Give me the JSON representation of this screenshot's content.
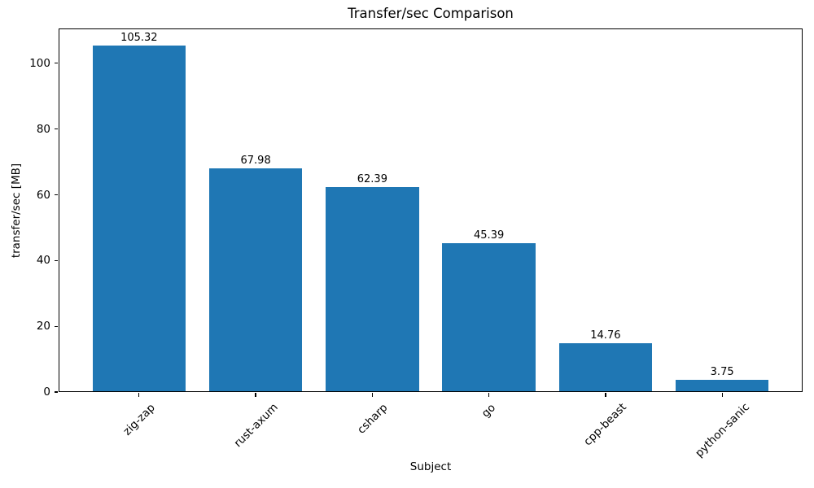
{
  "chart_data": {
    "type": "bar",
    "title": "Transfer/sec Comparison",
    "xlabel": "Subject",
    "ylabel": "transfer/sec [MB]",
    "categories": [
      "zig-zap",
      "rust-axum",
      "csharp",
      "go",
      "cpp-beast",
      "python-sanic"
    ],
    "values": [
      105.32,
      67.98,
      62.39,
      45.39,
      14.76,
      3.75
    ],
    "bar_labels": [
      "105.32",
      "67.98",
      "62.39",
      "45.39",
      "14.76",
      "3.75"
    ],
    "yticks": [
      0,
      20,
      40,
      60,
      80,
      100
    ],
    "ylim": [
      0,
      110.6
    ],
    "xtick_rotation_deg": 45,
    "bar_color": "#1f77b4",
    "background_color": "#ffffff",
    "grid": false,
    "legend": null
  }
}
